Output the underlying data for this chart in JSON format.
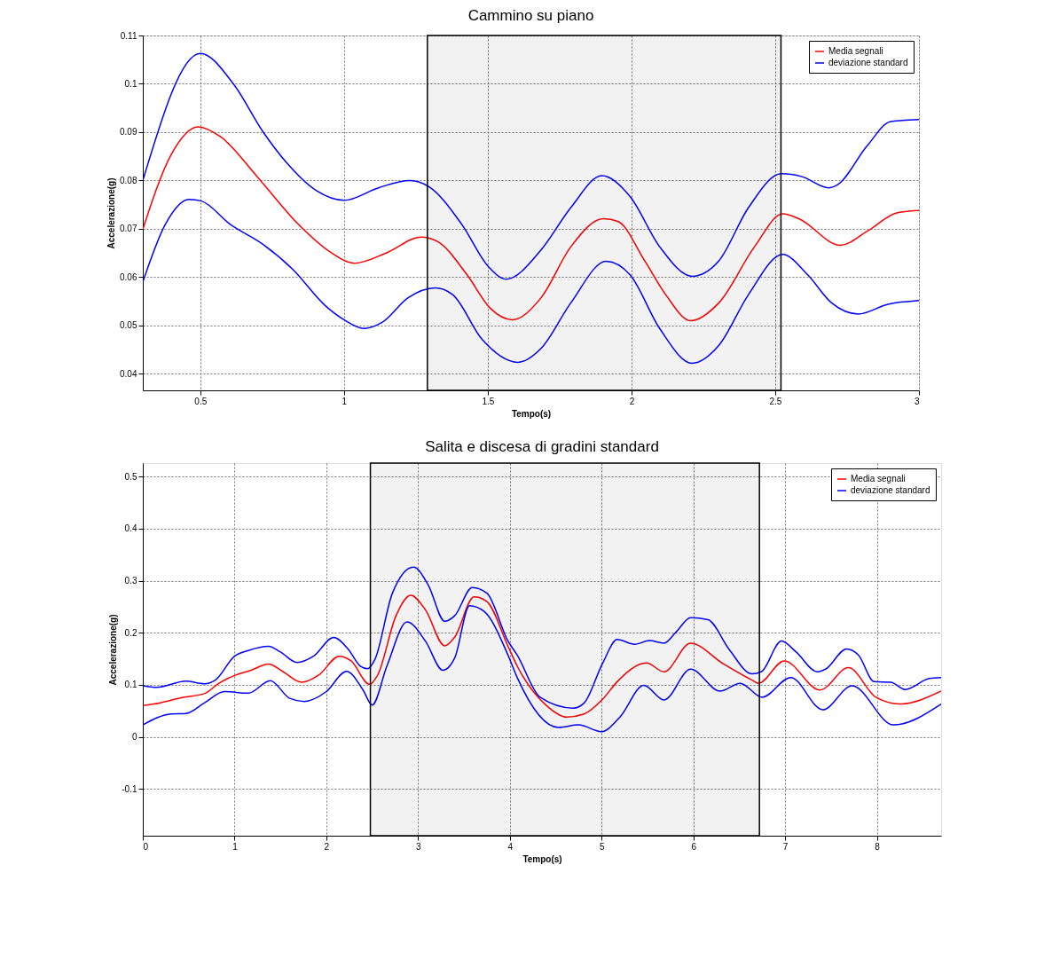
{
  "chart_data": [
    {
      "type": "line",
      "title": "Cammino su piano",
      "xlabel": "Tempo(s)",
      "ylabel": "Accelerazione(g)",
      "xlim": [
        0.3,
        3
      ],
      "ylim": [
        0.0366,
        0.11
      ],
      "xticks": [
        0.5,
        1,
        1.5,
        2,
        2.5,
        3
      ],
      "yticks": [
        0.04,
        0.05,
        0.06,
        0.07,
        0.08,
        0.09,
        0.1,
        0.11
      ],
      "grid": true,
      "legend": "top right",
      "line_style": "solid",
      "marker": "none",
      "bands": [
        {
          "axis": "x",
          "from": 1.29,
          "to": 2.52,
          "color": "#000000"
        }
      ],
      "series": [
        {
          "name": "Media segnali",
          "color": "#ff0000",
          "x": [
            0.3,
            0.399,
            0.492,
            0.574,
            0.698,
            0.842,
            0.955,
            1.037,
            1.15,
            1.268,
            1.325,
            1.428,
            1.51,
            1.585,
            1.686,
            1.789,
            1.902,
            1.954,
            2.046,
            2.119,
            2.206,
            2.304,
            2.428,
            2.526,
            2.582,
            2.727,
            2.82,
            2.923,
            3.0
          ],
          "values": [
            0.0699,
            0.0854,
            0.0911,
            0.0889,
            0.0808,
            0.0709,
            0.0651,
            0.0629,
            0.0651,
            0.0683,
            0.0674,
            0.0605,
            0.0535,
            0.0512,
            0.0558,
            0.0663,
            0.0721,
            0.0715,
            0.0634,
            0.0564,
            0.051,
            0.0547,
            0.0663,
            0.0731,
            0.0721,
            0.0666,
            0.0695,
            0.0733,
            0.0738
          ]
        },
        {
          "name": "deviazione standard",
          "color": "#0000ff",
          "x": [
            0.3,
            0.5,
            0.615,
            0.719,
            0.8,
            0.904,
            1.0,
            1.12,
            1.229,
            1.296,
            1.41,
            1.502,
            1.564,
            1.686,
            1.789,
            1.897,
            1.995,
            2.098,
            2.211,
            2.304,
            2.407,
            2.521,
            2.593,
            2.686,
            2.716,
            2.82,
            2.902,
            3.0
          ],
          "values": [
            0.08,
            0.1063,
            0.1,
            0.09,
            0.0837,
            0.0779,
            0.0759,
            0.0785,
            0.08,
            0.0787,
            0.0709,
            0.0622,
            0.0596,
            0.0657,
            0.0744,
            0.081,
            0.0767,
            0.0663,
            0.0602,
            0.0634,
            0.0744,
            0.0814,
            0.0808,
            0.0785,
            0.0791,
            0.0872,
            0.0922,
            0.0926
          ]
        },
        {
          "color": "#0000ff",
          "x": [
            0.3,
            0.378,
            0.461,
            0.502,
            0.605,
            0.718,
            0.822,
            0.935,
            1.0,
            1.069,
            1.131,
            1.224,
            1.317,
            1.378,
            1.481,
            1.605,
            1.686,
            1.789,
            1.912,
            1.995,
            2.098,
            2.211,
            2.304,
            2.407,
            2.526,
            2.613,
            2.696,
            2.789,
            2.892,
            3.0
          ],
          "values": [
            0.059,
            0.0709,
            0.0761,
            0.0758,
            0.0709,
            0.0668,
            0.0616,
            0.0541,
            0.0512,
            0.0494,
            0.0506,
            0.0558,
            0.0578,
            0.0564,
            0.0471,
            0.0424,
            0.0453,
            0.0547,
            0.0633,
            0.0605,
            0.0494,
            0.0422,
            0.0459,
            0.0564,
            0.0647,
            0.0605,
            0.0547,
            0.0524,
            0.0544,
            0.0552
          ]
        }
      ]
    },
    {
      "type": "line",
      "title": "Salita e discesa di gradini standard",
      "xlabel": "Tempo(s)",
      "ylabel": "Accelerazione(g)",
      "xlim": [
        0,
        8.7
      ],
      "ylim": [
        -0.19,
        0.526
      ],
      "xticks": [
        0,
        1,
        2,
        3,
        4,
        5,
        6,
        7,
        8
      ],
      "yticks": [
        -0.1,
        0,
        0.1,
        0.2,
        0.3,
        0.4,
        0.5
      ],
      "grid": true,
      "legend": "top right",
      "line_style": "solid",
      "marker": "none",
      "bands": [
        {
          "axis": "x",
          "from": 2.48,
          "to": 6.72,
          "color": "#000000"
        }
      ],
      "series": [
        {
          "name": "Media segnali",
          "color": "#ff0000",
          "x": [
            0,
            0.18,
            0.44,
            0.67,
            0.83,
            1.0,
            1.18,
            1.37,
            1.53,
            1.73,
            1.92,
            2.14,
            2.27,
            2.47,
            2.56,
            2.76,
            2.92,
            3.08,
            3.29,
            3.4,
            3.61,
            3.75,
            3.98,
            4.08,
            4.4,
            4.62,
            4.81,
            5.01,
            5.17,
            5.49,
            5.68,
            5.97,
            6.32,
            6.64,
            6.71,
            6.99,
            7.38,
            7.69,
            7.99,
            8.25,
            8.7
          ],
          "values": [
            0.06,
            0.065,
            0.076,
            0.083,
            0.103,
            0.118,
            0.128,
            0.14,
            0.125,
            0.105,
            0.119,
            0.155,
            0.146,
            0.101,
            0.119,
            0.233,
            0.272,
            0.244,
            0.175,
            0.192,
            0.269,
            0.26,
            0.174,
            0.136,
            0.06,
            0.038,
            0.044,
            0.072,
            0.106,
            0.142,
            0.125,
            0.18,
            0.141,
            0.109,
            0.103,
            0.146,
            0.09,
            0.133,
            0.076,
            0.063,
            0.088
          ]
        },
        {
          "name": "deviazione standard",
          "color": "#0000ff",
          "x": [
            0,
            0.15,
            0.47,
            0.67,
            0.79,
            1.0,
            1.15,
            1.37,
            1.5,
            1.68,
            1.86,
            2.08,
            2.24,
            2.37,
            2.45,
            2.53,
            2.72,
            2.95,
            3.11,
            3.29,
            3.4,
            3.59,
            3.75,
            3.98,
            4.08,
            4.33,
            4.69,
            4.81,
            5.01,
            5.17,
            5.36,
            5.52,
            5.68,
            5.81,
            5.97,
            6.16,
            6.39,
            6.64,
            6.74,
            6.96,
            7.12,
            7.35,
            7.44,
            7.67,
            7.8,
            7.97,
            8.15,
            8.31,
            8.57,
            8.7
          ],
          "values": [
            0.098,
            0.095,
            0.107,
            0.102,
            0.109,
            0.155,
            0.166,
            0.174,
            0.163,
            0.143,
            0.155,
            0.191,
            0.168,
            0.136,
            0.131,
            0.149,
            0.276,
            0.326,
            0.292,
            0.222,
            0.233,
            0.287,
            0.276,
            0.184,
            0.157,
            0.076,
            0.055,
            0.065,
            0.141,
            0.187,
            0.178,
            0.185,
            0.18,
            0.201,
            0.229,
            0.225,
            0.168,
            0.121,
            0.125,
            0.184,
            0.163,
            0.125,
            0.13,
            0.169,
            0.157,
            0.106,
            0.105,
            0.091,
            0.112,
            0.114
          ]
        },
        {
          "color": "#0000ff",
          "x": [
            0,
            0.31,
            0.47,
            0.67,
            0.89,
            1.15,
            1.39,
            1.6,
            1.76,
            2.0,
            2.22,
            2.4,
            2.5,
            2.66,
            2.88,
            3.08,
            3.27,
            3.4,
            3.56,
            3.72,
            3.98,
            4.08,
            4.53,
            4.75,
            5.0,
            5.2,
            5.46,
            5.68,
            5.97,
            6.29,
            6.51,
            6.75,
            7.06,
            7.41,
            7.73,
            8.18,
            8.7
          ],
          "values": [
            0.023,
            0.044,
            0.045,
            0.065,
            0.087,
            0.084,
            0.108,
            0.074,
            0.068,
            0.087,
            0.126,
            0.09,
            0.061,
            0.136,
            0.221,
            0.184,
            0.128,
            0.152,
            0.252,
            0.241,
            0.157,
            0.114,
            0.018,
            0.023,
            0.01,
            0.038,
            0.099,
            0.071,
            0.13,
            0.088,
            0.103,
            0.076,
            0.114,
            0.052,
            0.098,
            0.023,
            0.063
          ]
        }
      ]
    }
  ]
}
